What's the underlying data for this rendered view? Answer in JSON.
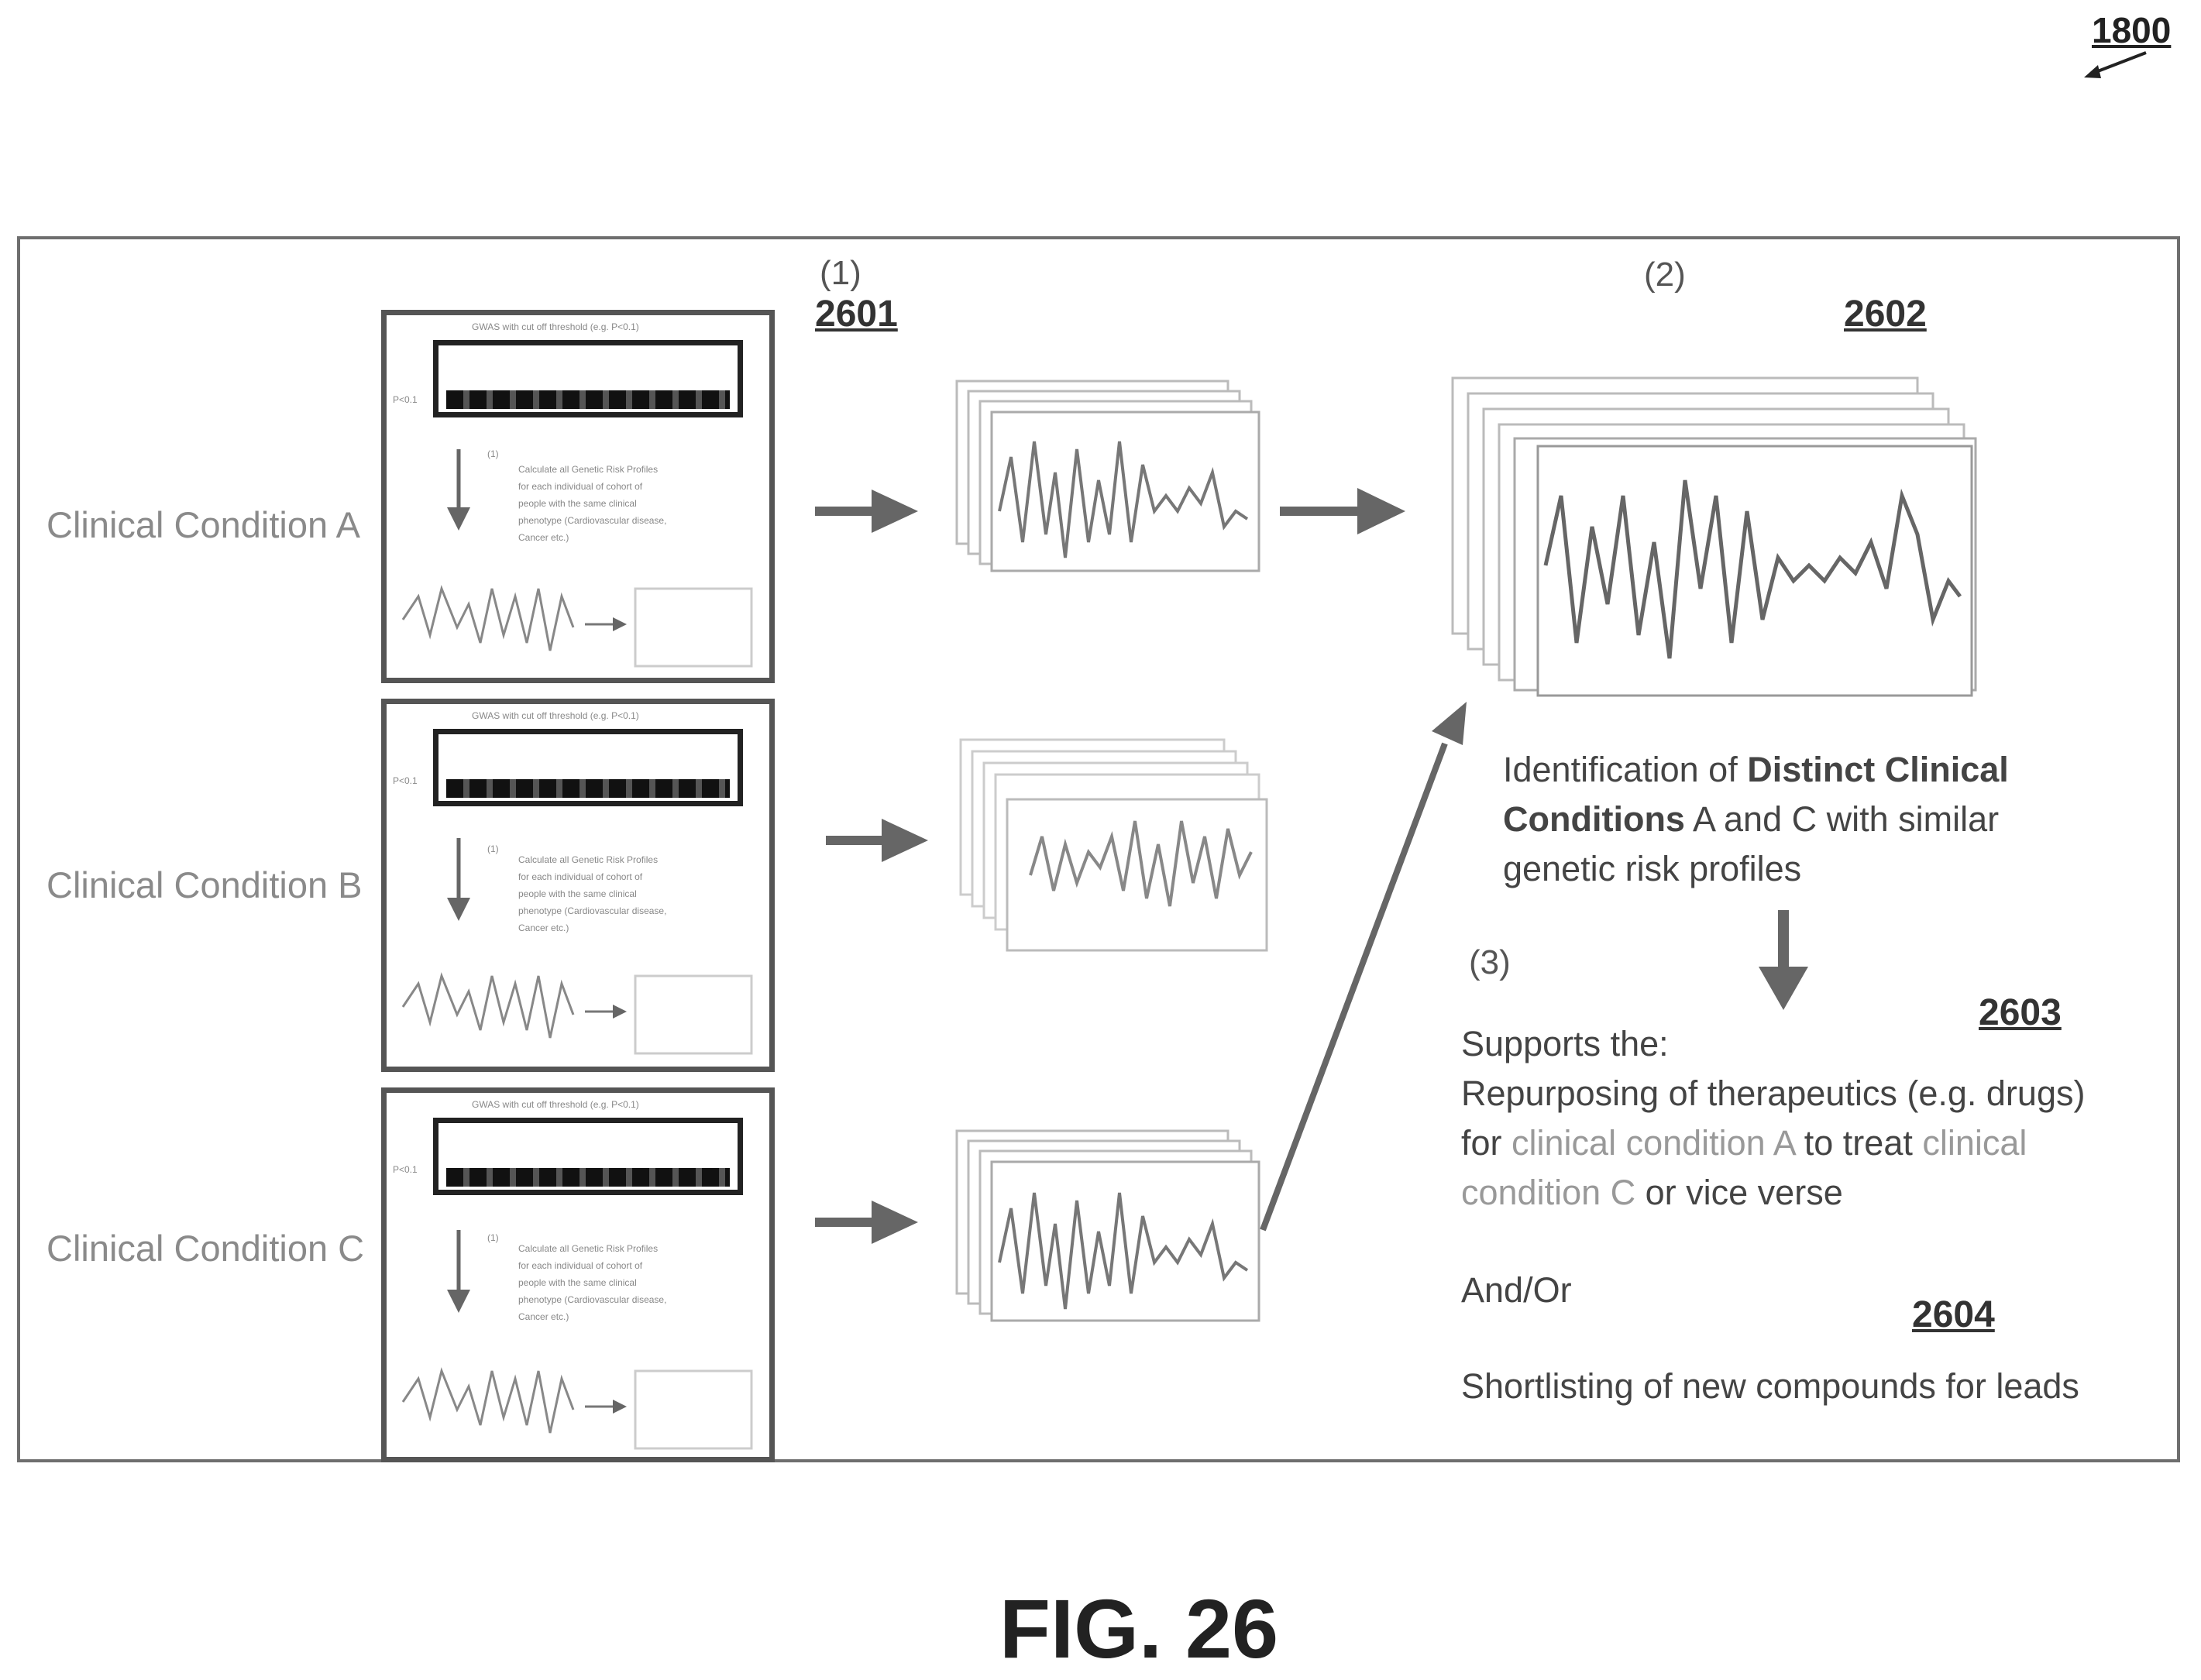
{
  "figure_ref": "1800",
  "figure_label": "FIG. 26",
  "steps": {
    "step1": {
      "number": "(1)",
      "ref": "2601"
    },
    "step2": {
      "number": "(2)",
      "ref": "2602"
    },
    "step3": {
      "number": "(3)",
      "ref": "2603"
    },
    "step4": {
      "ref": "2604"
    }
  },
  "conditions": [
    {
      "label": "Clinical Condition A",
      "panel_title": "GWAS with cut off threshold (e.g. P<0.1)",
      "p_label": "P<0.1",
      "step_marker": "(1)",
      "panel_text": [
        "Calculate all Genetic Risk Profiles",
        "for each individual of cohort of",
        "people with the same clinical",
        "phenotype (Cardiovascular disease,",
        "Cancer etc.)"
      ]
    },
    {
      "label": "Clinical Condition B",
      "panel_title": "GWAS with cut off threshold (e.g. P<0.1)",
      "p_label": "P<0.1",
      "step_marker": "(1)",
      "panel_text": [
        "Calculate all Genetic Risk Profiles",
        "for each individual of cohort of",
        "people with the same clinical",
        "phenotype (Cardiovascular disease,",
        "Cancer etc.)"
      ]
    },
    {
      "label": "Clinical Condition C",
      "panel_title": "GWAS with cut off threshold (e.g. P<0.1)",
      "p_label": "P<0.1",
      "step_marker": "(1)",
      "panel_text": [
        "Calculate all Genetic Risk Profiles",
        "for each individual of cohort of",
        "people with the same clinical",
        "phenotype (Cardiovascular disease,",
        "Cancer etc.)"
      ]
    }
  ],
  "identification": {
    "line1_plain": "Identification of ",
    "line1_bold": "Distinct Clinical",
    "line2_bold": "Conditions",
    "line2_plain": " A and C with similar",
    "line3": "genetic risk profiles"
  },
  "supports": {
    "line1": "Supports the:",
    "line2": "Repurposing of therapeutics (e.g. drugs)",
    "line3_a": "for ",
    "line3_b": "clinical condition A",
    "line3_c": " to treat ",
    "line3_d": "clinical",
    "line4_a": "condition C",
    "line4_b": " or vice verse"
  },
  "and_or": "And/Or",
  "shortlisting": "Shortlisting of new compounds for leads"
}
